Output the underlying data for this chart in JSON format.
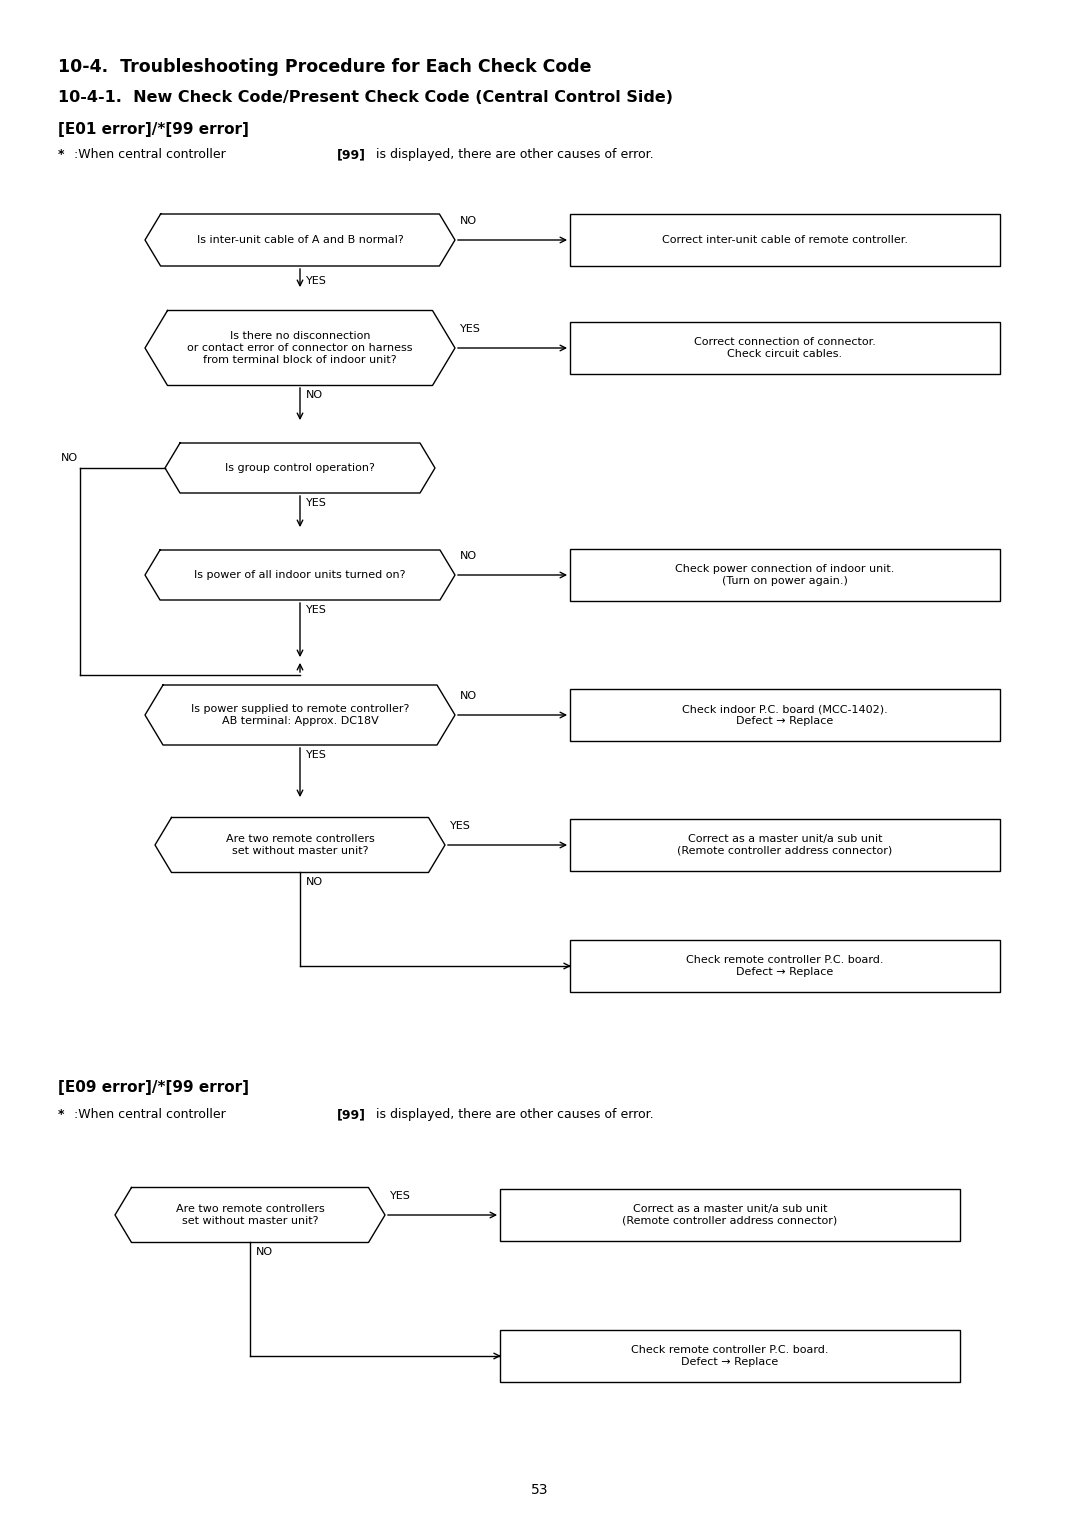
{
  "title1": "10-4.  Troubleshooting Procedure for Each Check Code",
  "title2": "10-4-1.  New Check Code/Present Check Code (Central Control Side)",
  "section1_header": "[E01 error]/*[99 error]",
  "section2_header": "[E09 error]/*[99 error]",
  "page_number": "53",
  "bg_color": "#ffffff",
  "box_color": "#000000",
  "text_color": "#000000",
  "font_size_title1": 12.5,
  "font_size_title2": 11.5,
  "font_size_header": 11,
  "font_size_note": 9,
  "font_size_box": 8,
  "font_size_page": 10
}
